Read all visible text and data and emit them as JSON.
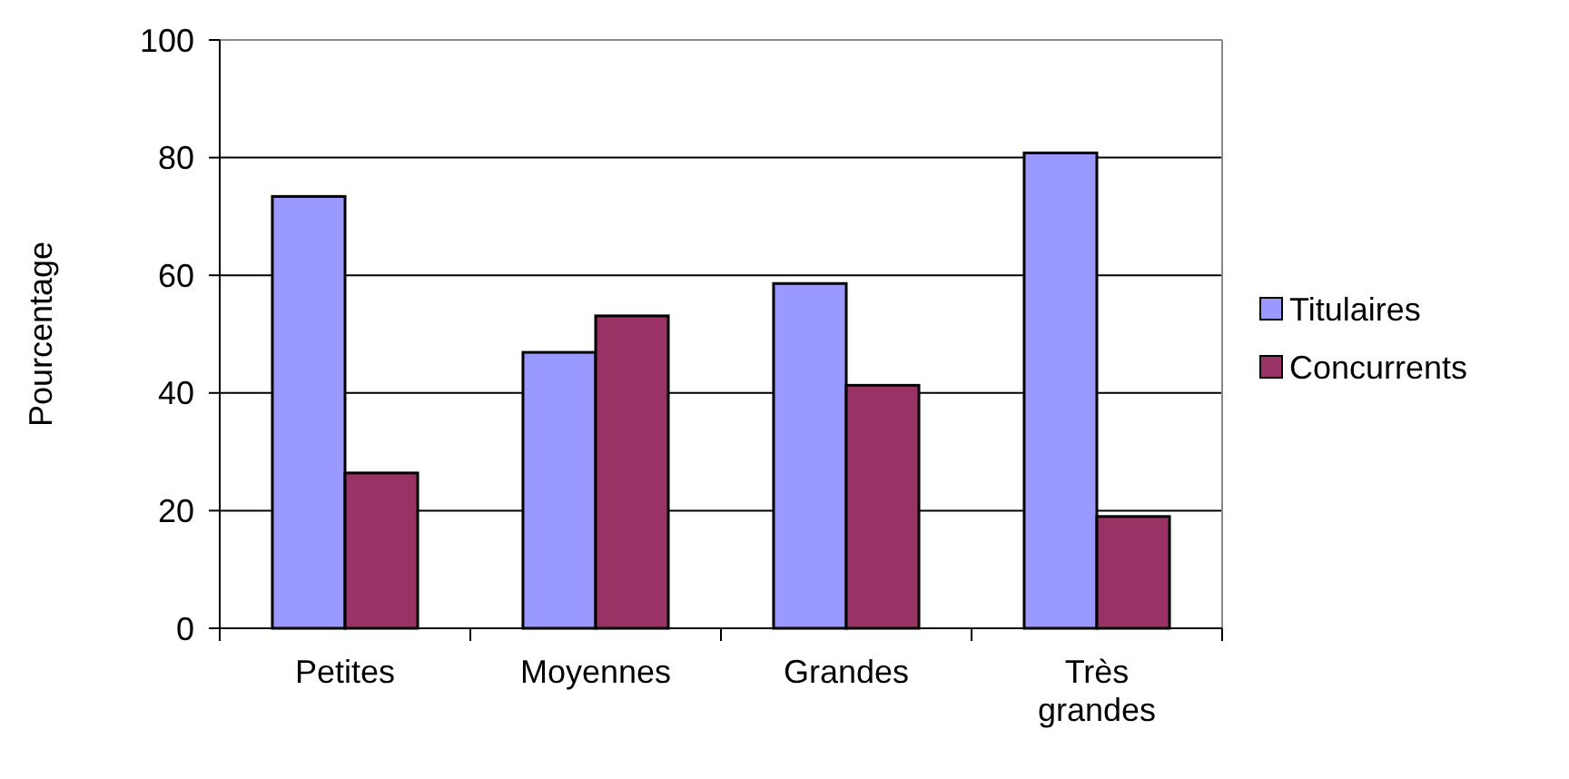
{
  "chart_data": {
    "type": "bar",
    "ylabel": "Pourcentage",
    "categories": [
      "Petites",
      "Moyennes",
      "Grandes",
      "Très grandes"
    ],
    "series": [
      {
        "name": "Titulaires",
        "color": "#9999ff",
        "values": [
          73.4,
          46.9,
          58.6,
          80.8
        ]
      },
      {
        "name": "Concurrents",
        "color": "#993366",
        "values": [
          26.4,
          53.1,
          41.3,
          19.0
        ]
      }
    ],
    "ylim": [
      0,
      100
    ],
    "yticks": [
      0,
      20,
      40,
      60,
      80,
      100
    ],
    "grid": "y",
    "legend": "right"
  }
}
